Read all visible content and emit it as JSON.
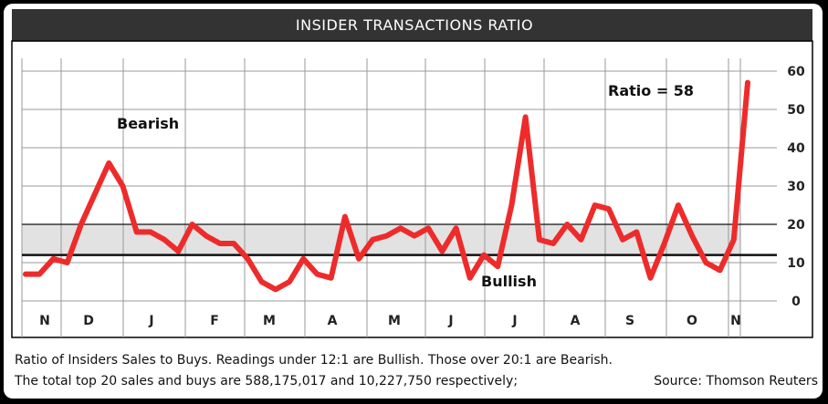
{
  "chart_data": {
    "type": "line",
    "title": "INSIDER TRANSACTIONS RATIO",
    "x_tick_labels": [
      "N",
      "D",
      "J",
      "F",
      "M",
      "A",
      "M",
      "J",
      "J",
      "A",
      "S",
      "O",
      "N"
    ],
    "y_ticks": [
      0,
      10,
      20,
      30,
      40,
      50,
      60
    ],
    "ylim": [
      0,
      60
    ],
    "grid": true,
    "series": [
      {
        "color": "#ee2b2b",
        "values": [
          7,
          7,
          11,
          10,
          20,
          28,
          36,
          30,
          18,
          18,
          16,
          13,
          20,
          17,
          15,
          15,
          11,
          5,
          3,
          5,
          11,
          7,
          6,
          22,
          11,
          16,
          17,
          19,
          17,
          19,
          13,
          19,
          6,
          12,
          9,
          25,
          48,
          16,
          15,
          20,
          16,
          25,
          24,
          16,
          18,
          6,
          15,
          25,
          17,
          10,
          8,
          16,
          57
        ]
      }
    ],
    "reference_band": {
      "from": 12,
      "to": 20,
      "color": "#e2e2e2"
    },
    "reference_lines": [
      12,
      20
    ],
    "annotations": {
      "bearish": "Bearish",
      "bullish": "Bullish",
      "ratio": "Ratio = 58"
    }
  },
  "caption": {
    "line1": "Ratio of Insiders Sales to Buys. Readings under 12:1 are Bullish. Those over 20:1 are Bearish.",
    "line2": "The total top 20 sales and buys are 588,175,017 and 10,227,750 respectively;",
    "source": "Source: Thomson Reuters"
  },
  "colors": {
    "title_bar": "#333333",
    "line": "#ee2b2b",
    "band": "#e2e2e2",
    "grid": "#9a9a9a"
  }
}
